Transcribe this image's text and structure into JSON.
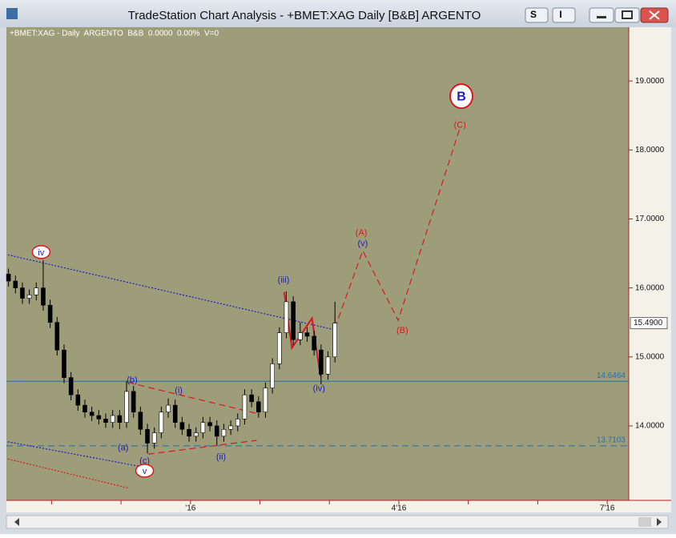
{
  "window": {
    "title": "TradeStation Chart Analysis - +BMET:XAG Daily [B&B] ARGENTO",
    "buttons": [
      "S",
      "I"
    ]
  },
  "chart_data": {
    "type": "candlestick",
    "header": "+BMET:XAG - Daily  ARGENTO  B&B  0.0000  0.00%  V=0",
    "xlim": [
      -2.65,
      6.31
    ],
    "ylim": [
      12.92,
      19.78
    ],
    "xticks": [
      {
        "value": 0,
        "label": "'16"
      },
      {
        "value": 3,
        "label": "4'16"
      },
      {
        "value": 6,
        "label": "7'16"
      }
    ],
    "xminorticks": [
      -2,
      -1,
      1,
      2,
      4,
      5
    ],
    "yticks": [
      {
        "value": 14,
        "label": "14.0000"
      },
      {
        "value": 15,
        "label": "15.0000"
      },
      {
        "value": 16,
        "label": "16.0000"
      },
      {
        "value": 17,
        "label": "17.0000"
      },
      {
        "value": 18,
        "label": "18.0000"
      },
      {
        "value": 19,
        "label": "19.0000"
      }
    ],
    "up_color": "#ffffff",
    "down_color": "#000000",
    "x": [
      -2.62,
      -2.52,
      -2.42,
      -2.32,
      -2.22,
      -2.12,
      -2.02,
      -1.92,
      -1.82,
      -1.72,
      -1.62,
      -1.52,
      -1.42,
      -1.32,
      -1.22,
      -1.12,
      -1.02,
      -0.92,
      -0.82,
      -0.72,
      -0.62,
      -0.52,
      -0.42,
      -0.32,
      -0.22,
      -0.12,
      -0.02,
      0.08,
      0.18,
      0.28,
      0.38,
      0.48,
      0.58,
      0.68,
      0.78,
      0.88,
      0.98,
      1.08,
      1.18,
      1.28,
      1.38,
      1.48,
      1.58,
      1.68,
      1.78,
      1.88,
      1.98,
      2.08
    ],
    "open": [
      16.2,
      16.1,
      16.0,
      15.85,
      15.9,
      16.0,
      15.75,
      15.5,
      15.1,
      14.7,
      14.45,
      14.3,
      14.2,
      14.15,
      14.1,
      14.05,
      14.15,
      14.05,
      14.5,
      14.2,
      13.95,
      13.75,
      13.9,
      14.2,
      14.3,
      14.05,
      13.95,
      13.85,
      13.9,
      14.05,
      14.0,
      13.85,
      13.95,
      14.0,
      14.1,
      14.45,
      14.35,
      14.2,
      14.55,
      14.9,
      15.35,
      15.8,
      15.25,
      15.35,
      15.3,
      15.1,
      14.75,
      15.0
    ],
    "high": [
      16.28,
      16.18,
      16.08,
      15.98,
      16.08,
      16.4,
      15.83,
      15.58,
      15.18,
      14.78,
      14.53,
      14.38,
      14.28,
      14.23,
      14.18,
      14.23,
      14.23,
      14.65,
      14.58,
      14.28,
      14.03,
      13.98,
      14.28,
      14.4,
      14.38,
      14.13,
      14.03,
      13.98,
      14.13,
      14.13,
      14.08,
      14.03,
      14.08,
      14.18,
      14.53,
      14.53,
      14.43,
      14.63,
      14.98,
      15.43,
      15.95,
      15.88,
      15.5,
      15.43,
      15.38,
      15.18,
      15.08,
      15.8
    ],
    "low": [
      16.02,
      15.92,
      15.77,
      15.77,
      15.82,
      15.67,
      15.42,
      15.02,
      14.62,
      14.37,
      14.22,
      14.12,
      14.07,
      14.02,
      13.97,
      13.97,
      13.95,
      13.97,
      14.12,
      13.87,
      13.6,
      13.67,
      13.82,
      14.12,
      13.97,
      13.87,
      13.77,
      13.77,
      13.82,
      13.92,
      13.72,
      13.77,
      13.87,
      13.92,
      14.02,
      14.27,
      14.12,
      14.12,
      14.47,
      14.82,
      15.27,
      15.17,
      15.17,
      15.22,
      15.02,
      14.6,
      14.67,
      14.92
    ],
    "close": [
      16.1,
      16.0,
      15.85,
      15.9,
      16.0,
      15.75,
      15.5,
      15.1,
      14.7,
      14.45,
      14.3,
      14.2,
      14.15,
      14.1,
      14.05,
      14.15,
      14.05,
      14.5,
      14.2,
      13.95,
      13.75,
      13.9,
      14.2,
      14.3,
      14.05,
      13.95,
      13.85,
      13.9,
      14.05,
      14.0,
      13.85,
      13.95,
      14.0,
      14.1,
      14.45,
      14.35,
      14.2,
      14.55,
      14.9,
      15.35,
      15.8,
      15.25,
      15.35,
      15.3,
      15.1,
      14.75,
      15.0,
      15.49
    ],
    "last_price": {
      "value": 15.49,
      "label": "15.4900"
    },
    "levels": [
      {
        "value": 14.6464,
        "label": "14.6464",
        "color": "#1f6fb0",
        "style": "solid"
      },
      {
        "value": 13.7103,
        "label": "13.7103",
        "color": "#1f6fb0",
        "style": "dashed"
      }
    ],
    "overlays": [
      {
        "color": "#1a1acc",
        "style": "dotted",
        "x": [
          -2.63,
          2.09
        ],
        "y": [
          16.48,
          15.39
        ]
      },
      {
        "color": "#1a1acc",
        "style": "dotted",
        "x": [
          -2.63,
          -0.61
        ],
        "y": [
          13.77,
          13.39
        ]
      },
      {
        "color": "#e0141e",
        "style": "dotted",
        "x": [
          -2.63,
          -0.9
        ],
        "y": [
          13.52,
          13.1
        ]
      },
      {
        "color": "#e0141e",
        "style": "dashed",
        "x": [
          -0.9,
          1.0
        ],
        "y": [
          14.63,
          14.17
        ]
      },
      {
        "color": "#e0141e",
        "style": "dashed",
        "x": [
          -0.61,
          0.95
        ],
        "y": [
          13.59,
          13.79
        ]
      },
      {
        "color": "#e0141e",
        "style": "solid",
        "x": [
          1.35,
          1.46,
          1.75,
          1.87
        ],
        "y": [
          15.94,
          15.13,
          15.56,
          14.72
        ]
      },
      {
        "color": "#e0141e",
        "style": "dashed",
        "x": [
          2.08,
          2.48,
          2.99,
          3.88
        ],
        "y": [
          15.42,
          16.54,
          15.53,
          18.32
        ]
      }
    ],
    "annotations": [
      {
        "text": "iv",
        "x": -2.15,
        "y": 16.52,
        "color": "#1a1acc",
        "shape": "ellipse"
      },
      {
        "text": "(b)",
        "x": -0.84,
        "y": 14.67,
        "color": "#1a1acc"
      },
      {
        "text": "(a)",
        "x": -0.97,
        "y": 13.69,
        "color": "#1a1acc"
      },
      {
        "text": "(c)",
        "x": -0.66,
        "y": 13.5,
        "color": "#1a1acc"
      },
      {
        "text": "v",
        "x": -0.66,
        "y": 13.35,
        "color": "#1a1acc",
        "shape": "ellipse"
      },
      {
        "text": "(i)",
        "x": -0.17,
        "y": 14.52,
        "color": "#1a1acc"
      },
      {
        "text": "(ii)",
        "x": 0.44,
        "y": 13.56,
        "color": "#1a1acc"
      },
      {
        "text": "(iii)",
        "x": 1.34,
        "y": 16.12,
        "color": "#1a1acc"
      },
      {
        "text": "(iv)",
        "x": 1.85,
        "y": 14.55,
        "color": "#1a1acc"
      },
      {
        "text": "(v)",
        "x": 2.48,
        "y": 16.65,
        "color": "#1a1acc"
      },
      {
        "text": "(A)",
        "x": 2.46,
        "y": 16.81,
        "color": "#e0141e"
      },
      {
        "text": "(B)",
        "x": 3.05,
        "y": 15.39,
        "color": "#e0141e"
      },
      {
        "text": "(C)",
        "x": 3.88,
        "y": 18.37,
        "color": "#e0141e"
      },
      {
        "text": "B",
        "x": 3.9,
        "y": 18.78,
        "color": "#1a1acc",
        "shape": "circle"
      }
    ]
  }
}
